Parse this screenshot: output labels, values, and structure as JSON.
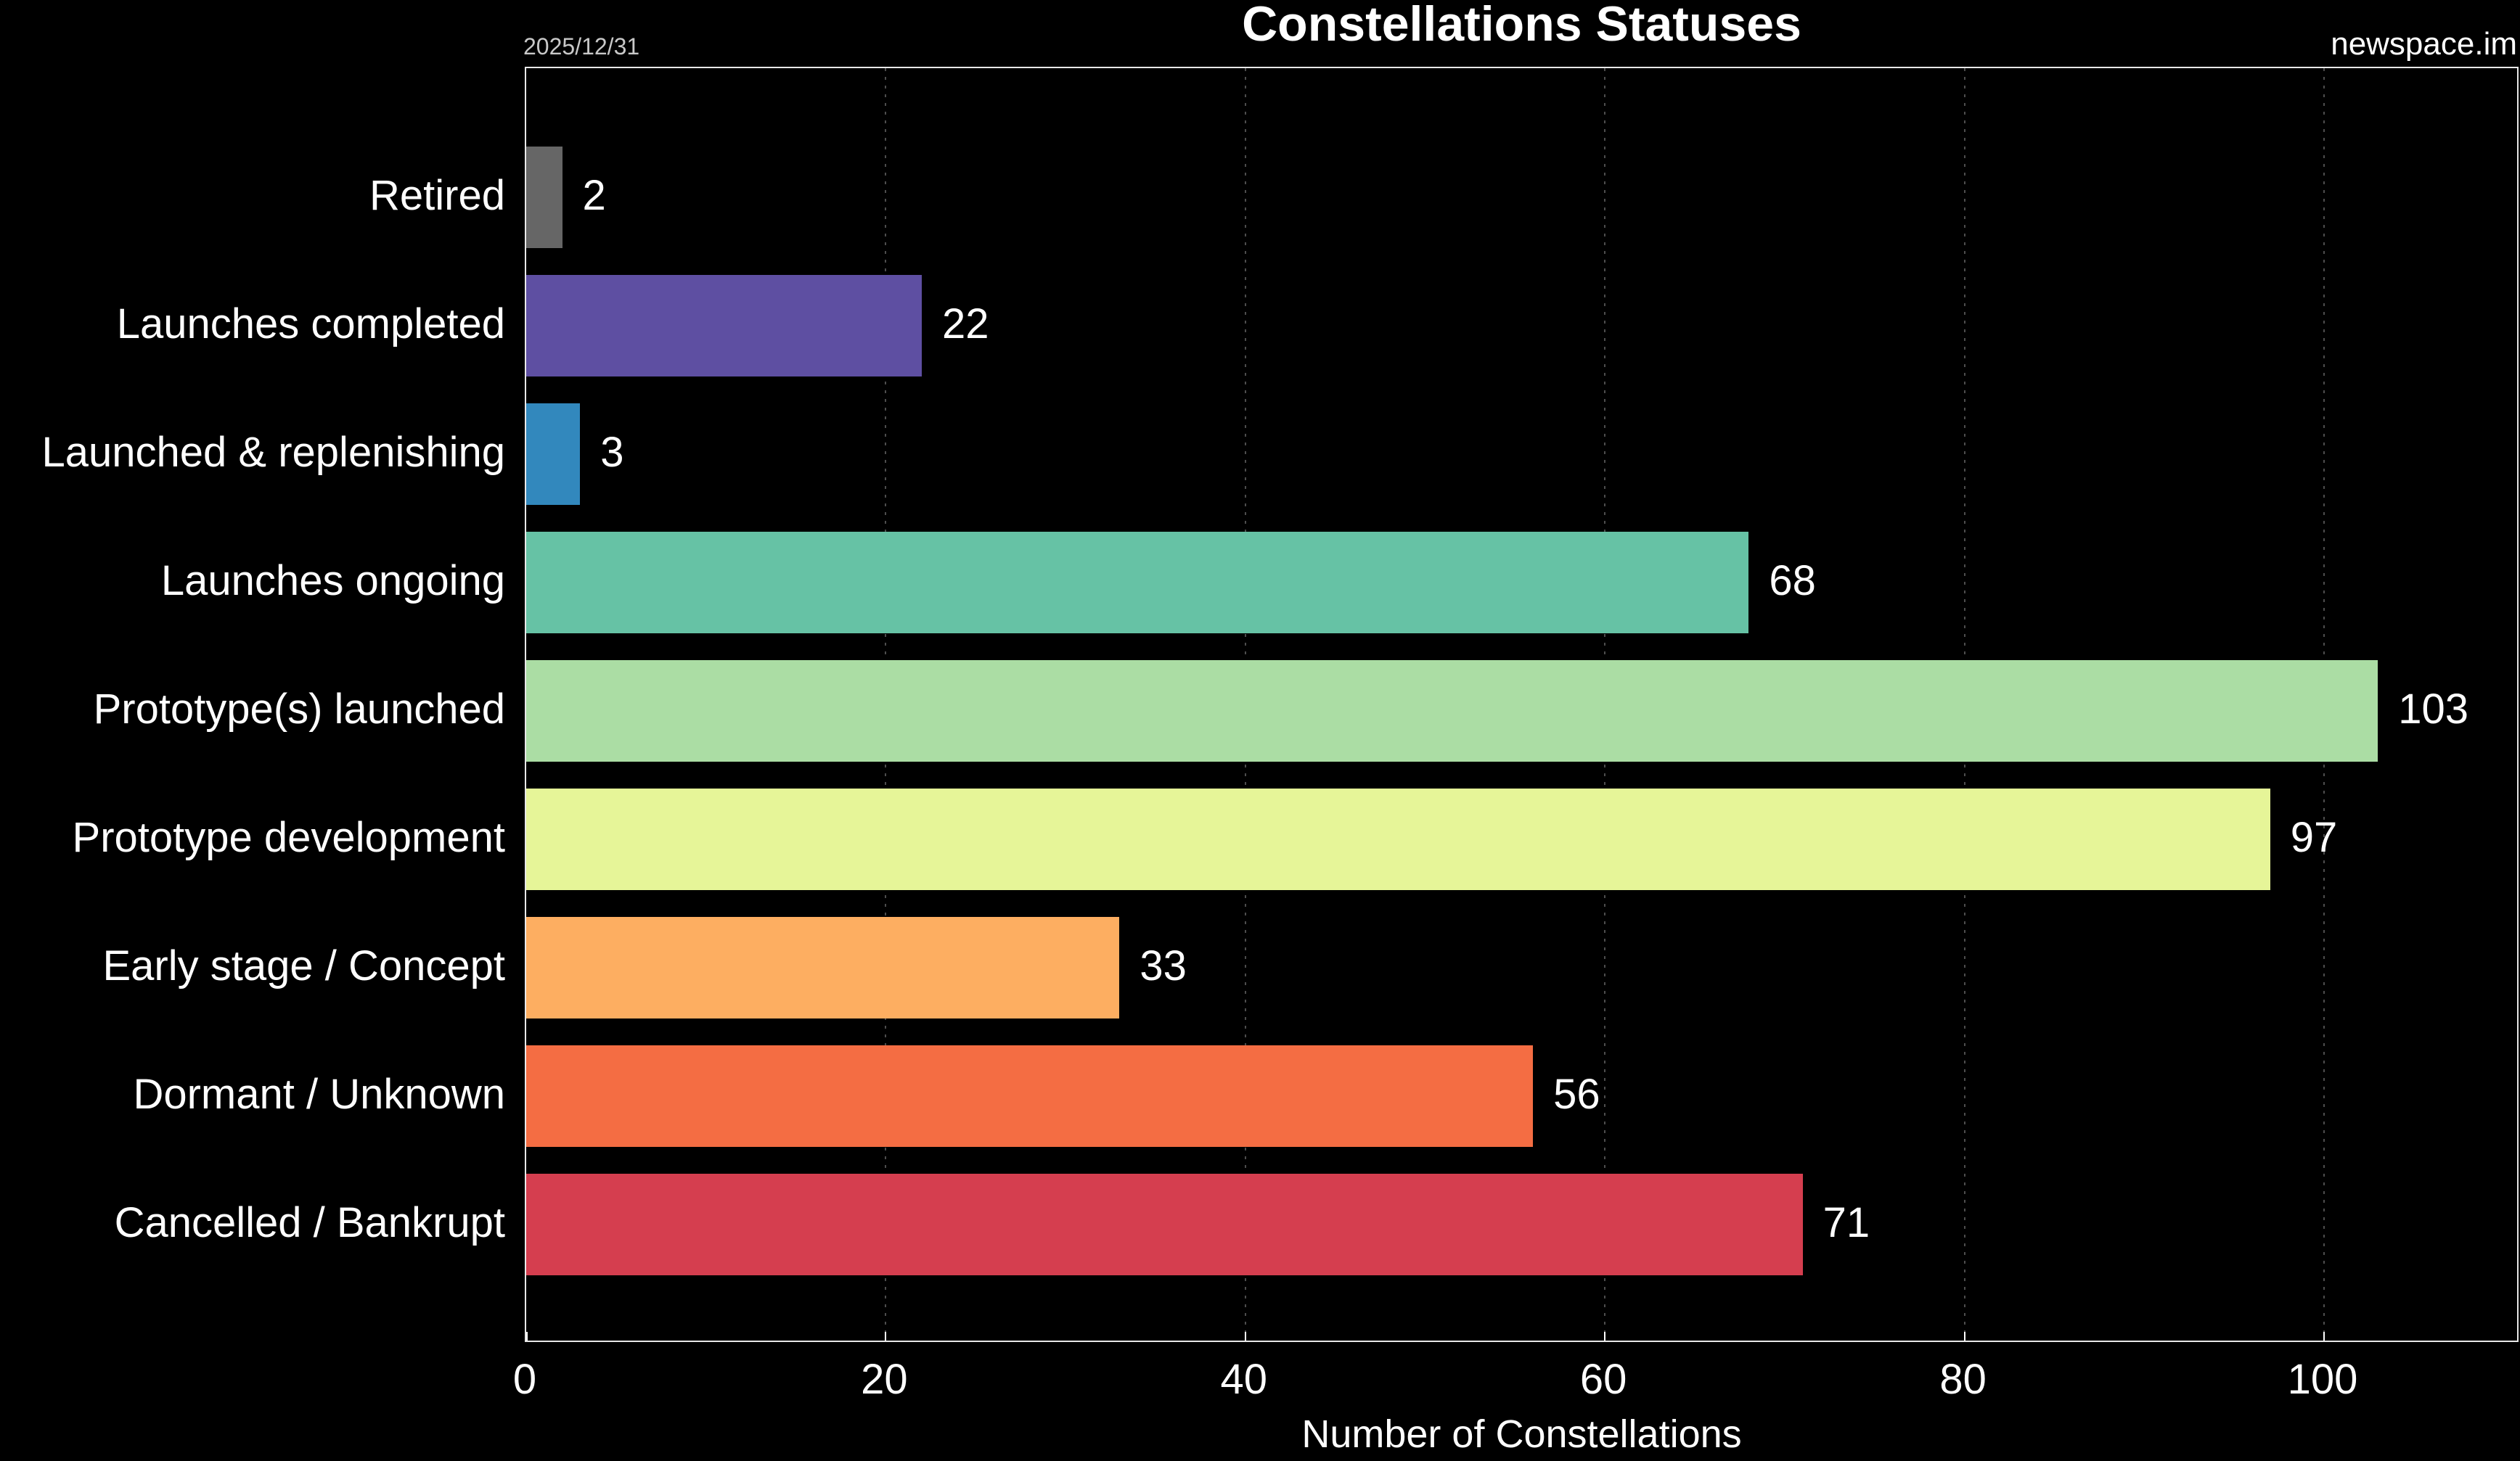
{
  "title": "Constellations Statuses",
  "annotations": {
    "date": "2025/12/31",
    "watermark": "newspace.im"
  },
  "chart_data": {
    "type": "bar",
    "orientation": "horizontal",
    "title": "Constellations Statuses",
    "categories": [
      "Retired",
      "Launches completed",
      "Launched & replenishing",
      "Launches ongoing",
      "Prototype(s) launched",
      "Prototype development",
      "Early stage / Concept",
      "Dormant / Unknown",
      "Cancelled / Bankrupt"
    ],
    "values": [
      2,
      22,
      3,
      68,
      103,
      97,
      33,
      56,
      71
    ],
    "colors": [
      "#666666",
      "#5e4fa2",
      "#3288bd",
      "#66c2a5",
      "#abdda4",
      "#e6f598",
      "#fdae61",
      "#f46d43",
      "#d53e4f"
    ],
    "xlabel": "Number of Constellations",
    "xticks": [
      0,
      20,
      40,
      60,
      80,
      100
    ],
    "xlim": [
      0,
      110.9
    ],
    "grid": "dotted-vertical",
    "legend": "none",
    "background": "#000000",
    "text_color": "#ffffff",
    "frame_color": "#e8e8e8",
    "grid_color": "#4d4d4d"
  }
}
